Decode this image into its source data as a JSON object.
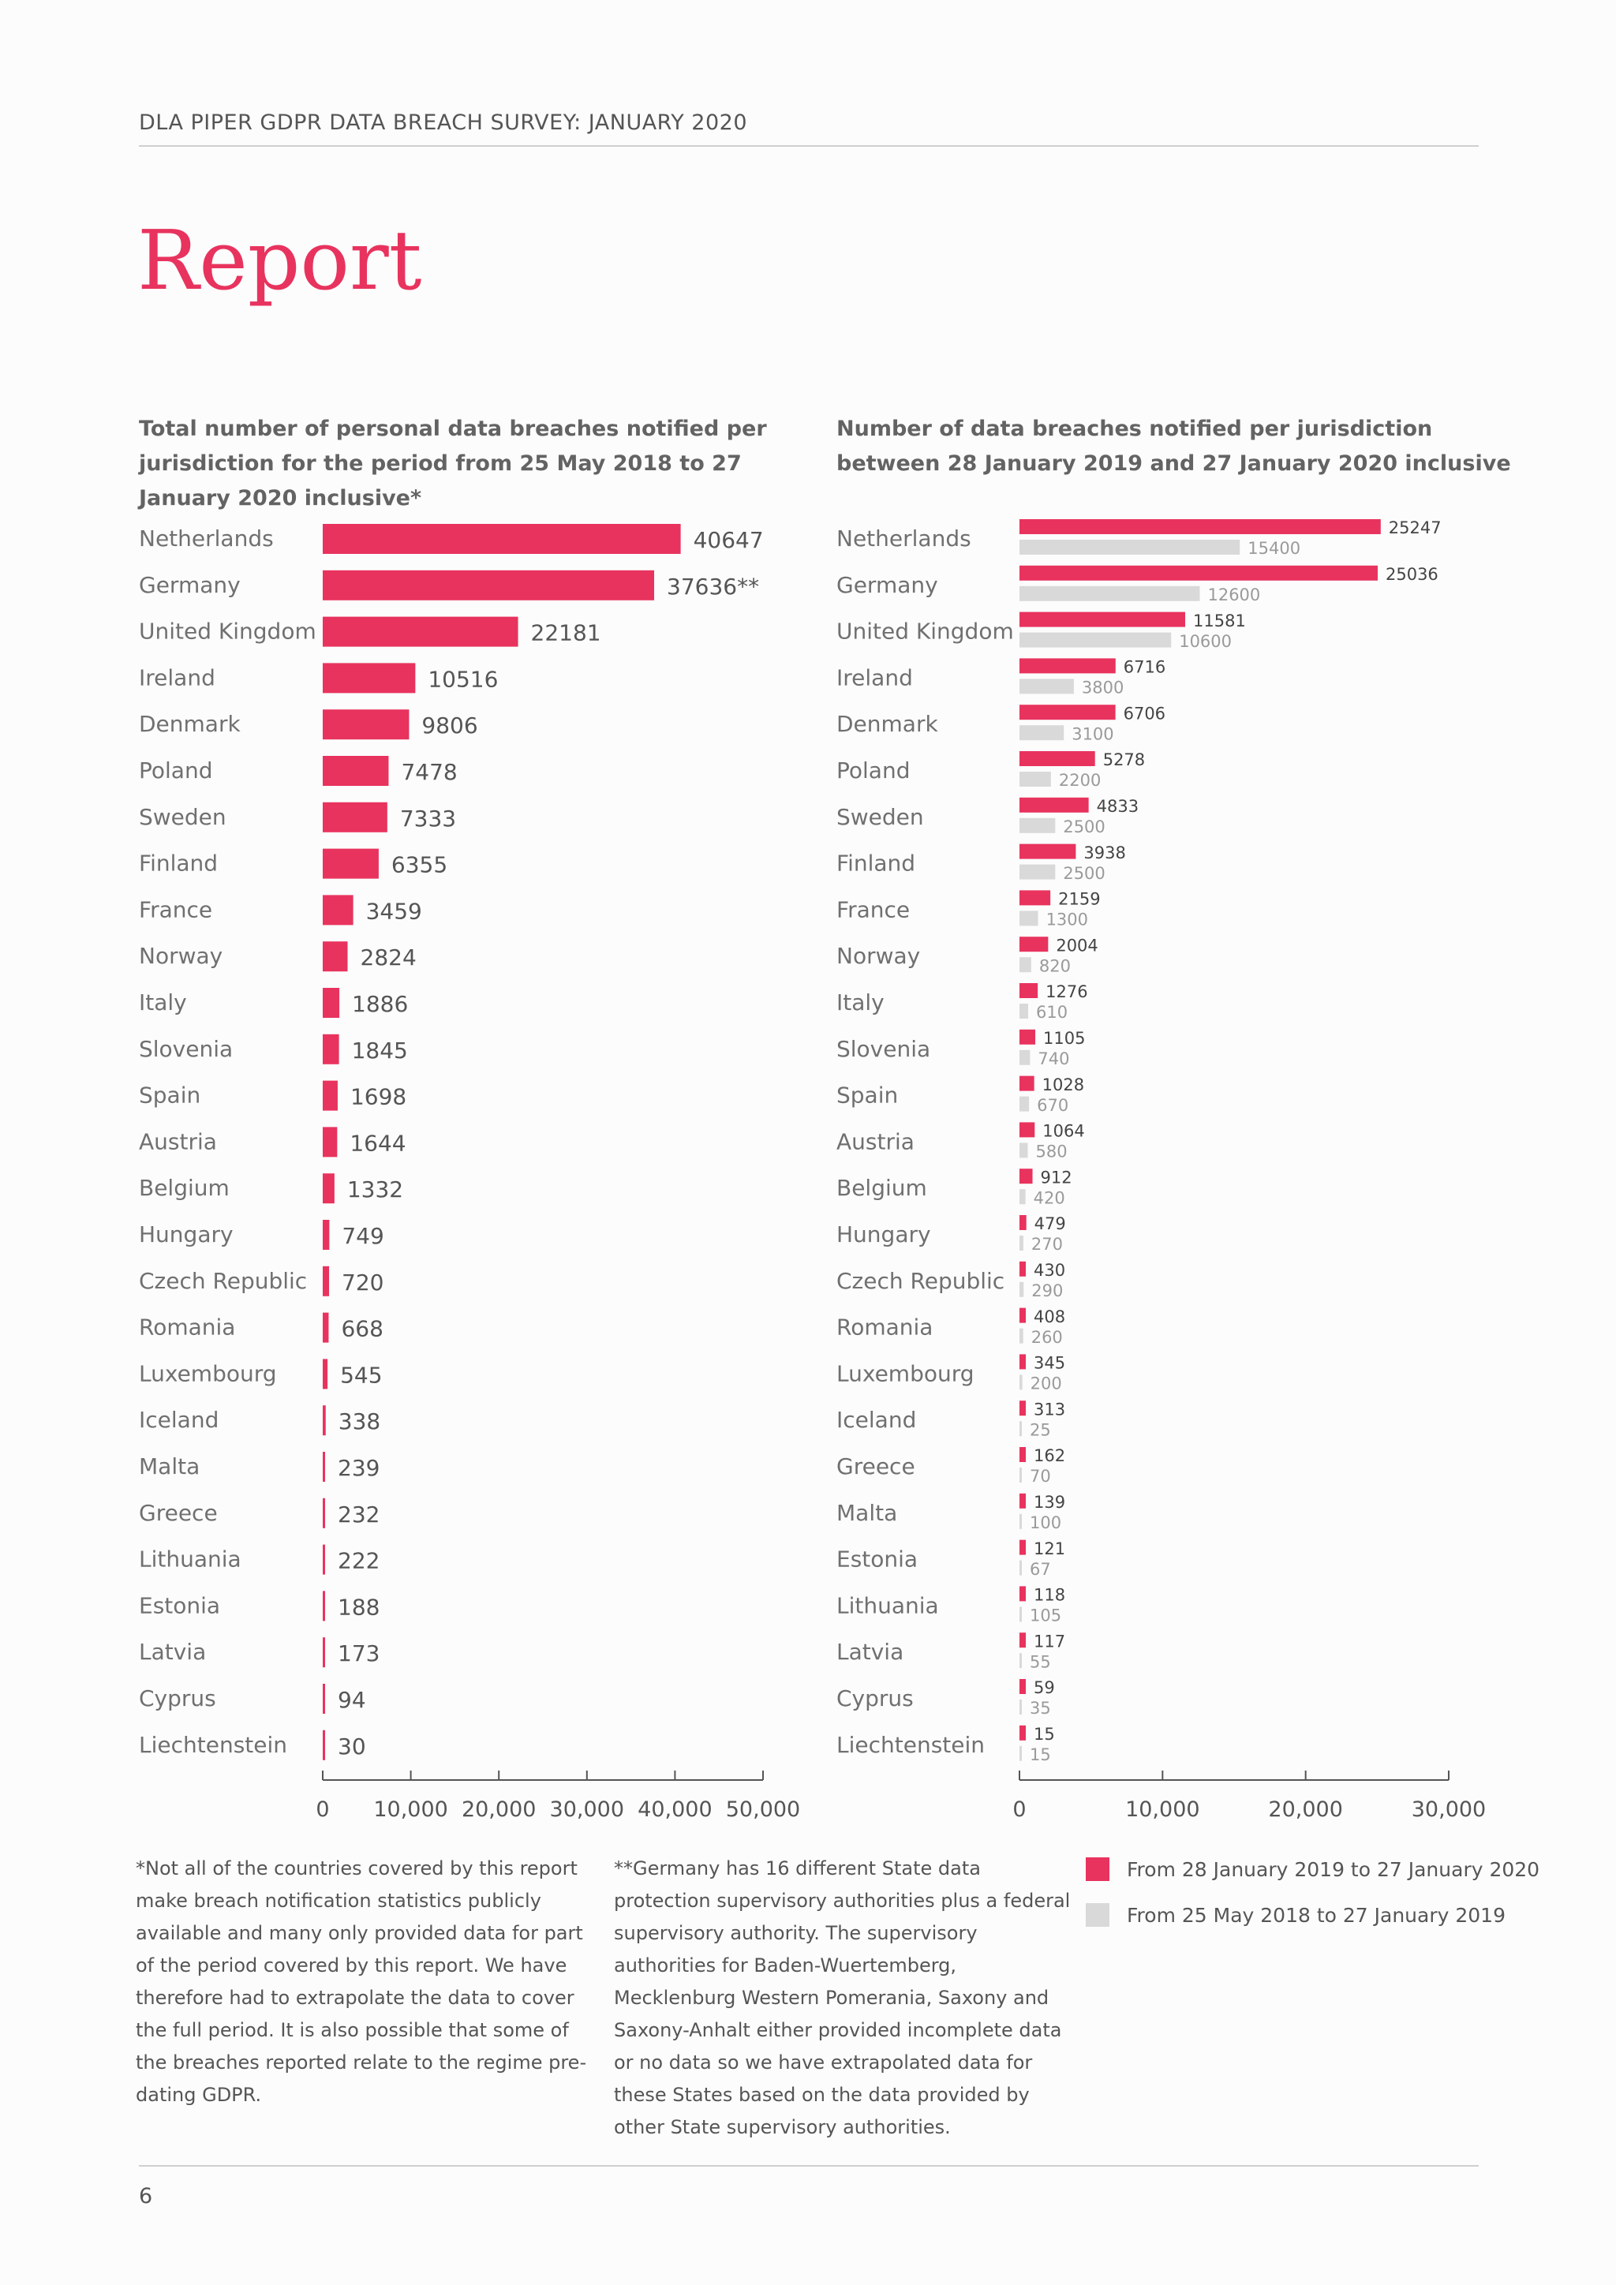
{
  "header": {
    "text": "DLA PIPER GDPR DATA BREACH SURVEY: JANUARY 2020"
  },
  "title": "Report",
  "colors": {
    "accent": "#e8335e",
    "grey_bar": "#d9d9d9"
  },
  "left_chart": {
    "title": "Total number of personal data breaches notified per jurisdiction for the period from 25 May 2018 to 27 January 2020 inclusive*"
  },
  "right_chart": {
    "title": "Number of data breaches notified per jurisdiction between 28 January 2019 and 27 January 2020 inclusive"
  },
  "chart_data": [
    {
      "type": "bar",
      "orientation": "horizontal",
      "title": "Total number of personal data breaches notified per jurisdiction for the period from 25 May 2018 to 27 January 2020 inclusive*",
      "categories": [
        "Netherlands",
        "Germany",
        "United Kingdom",
        "Ireland",
        "Denmark",
        "Poland",
        "Sweden",
        "Finland",
        "France",
        "Norway",
        "Italy",
        "Slovenia",
        "Spain",
        "Austria",
        "Belgium",
        "Hungary",
        "Czech Republic",
        "Romania",
        "Luxembourg",
        "Iceland",
        "Malta",
        "Greece",
        "Lithuania",
        "Estonia",
        "Latvia",
        "Cyprus",
        "Liechtenstein"
      ],
      "values": [
        40647,
        37636,
        22181,
        10516,
        9806,
        7478,
        7333,
        6355,
        3459,
        2824,
        1886,
        1845,
        1698,
        1644,
        1332,
        749,
        720,
        668,
        545,
        338,
        239,
        232,
        222,
        188,
        173,
        94,
        30
      ],
      "value_labels": [
        "40647",
        "37636**",
        "22181",
        "10516",
        "9806",
        "7478",
        "7333",
        "6355",
        "3459",
        "2824",
        "1886",
        "1845",
        "1698",
        "1644",
        "1332",
        "749",
        "720",
        "668",
        "545",
        "338",
        "239",
        "232",
        "222",
        "188",
        "173",
        "94",
        "30"
      ],
      "xlim": [
        0,
        50000
      ],
      "ticks": [
        0,
        10000,
        20000,
        30000,
        40000,
        50000
      ],
      "tick_labels": [
        "0",
        "10,000",
        "20,000",
        "30,000",
        "40,000",
        "50,000"
      ],
      "grid": false,
      "color": "#e8335e"
    },
    {
      "type": "bar",
      "orientation": "horizontal",
      "title": "Number of data breaches notified per jurisdiction between 28 January 2019 and 27 January 2020 inclusive",
      "categories": [
        "Netherlands",
        "Germany",
        "United Kingdom",
        "Ireland",
        "Denmark",
        "Poland",
        "Sweden",
        "Finland",
        "France",
        "Norway",
        "Italy",
        "Slovenia",
        "Spain",
        "Austria",
        "Belgium",
        "Hungary",
        "Czech Republic",
        "Romania",
        "Luxembourg",
        "Iceland",
        "Greece",
        "Malta",
        "Estonia",
        "Lithuania",
        "Latvia",
        "Cyprus",
        "Liechtenstein"
      ],
      "series": [
        {
          "name": "From 28 January 2019 to 27 January 2020",
          "color": "#e8335e",
          "values": [
            25247,
            25036,
            11581,
            6716,
            6706,
            5278,
            4833,
            3938,
            2159,
            2004,
            1276,
            1105,
            1028,
            1064,
            912,
            479,
            430,
            408,
            345,
            313,
            162,
            139,
            121,
            118,
            117,
            59,
            15
          ]
        },
        {
          "name": "From 25 May 2018 to 27 January 2019",
          "color": "#d9d9d9",
          "values": [
            15400,
            12600,
            10600,
            3800,
            3100,
            2200,
            2500,
            2500,
            1300,
            820,
            610,
            740,
            670,
            580,
            420,
            270,
            290,
            260,
            200,
            25,
            70,
            100,
            67,
            105,
            55,
            35,
            15
          ]
        }
      ],
      "xlim": [
        0,
        30000
      ],
      "ticks": [
        0,
        10000,
        20000,
        30000
      ],
      "tick_labels": [
        "0",
        "10,000",
        "20,000",
        "30,000"
      ],
      "grid": false,
      "legend": "bottom-right"
    }
  ],
  "footnotes": [
    "*Not all of the countries covered by this report make breach notification statistics publicly available and many only provided data for part of the period covered by this report. We have therefore had to extrapolate the data to cover the full period. It is also possible that some of the breaches reported relate to the regime pre-dating GDPR.",
    "**Germany has 16 different State data protection supervisory authorities plus a federal supervisory authority. The supervisory authorities for Baden-Wuertemberg, Mecklenburg Western Pomerania, Saxony and Saxony-Anhalt either provided incomplete data or no data so we have extrapolated data for these States based on the data provided by other State supervisory authorities."
  ],
  "legend": [
    {
      "label": "From 28 January 2019 to 27 January 2020",
      "color": "#e8335e"
    },
    {
      "label": "From 25 May 2018 to 27 January 2019",
      "color": "#d9d9d9"
    }
  ],
  "page_number": "6"
}
